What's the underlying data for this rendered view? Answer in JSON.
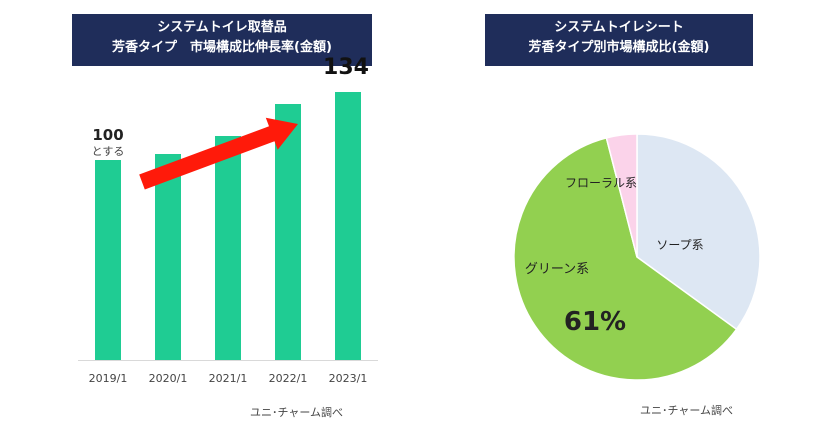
{
  "left_chart": {
    "title_line1": "システムトイレ取替品",
    "title_line2": "芳香タイプ　市場構成比伸長率(金額)",
    "source": "ユニ･チャーム調べ",
    "bar_color": "#1fcc93",
    "arrow_color": "#ff1a0a",
    "start_label": "100",
    "start_sub_label": "とする",
    "end_label": "134"
  },
  "right_chart": {
    "title_line1": "システムトイレシート",
    "title_line2": "芳香タイプ別市場構成比(金額)",
    "source": "ユニ･チャーム調べ",
    "highlight_label": "61%"
  },
  "chart_data": [
    {
      "type": "bar",
      "categories": [
        "2019/1",
        "2020/1",
        "2021/1",
        "2022/1",
        "2023/1"
      ],
      "values": [
        100,
        103,
        112,
        128,
        134
      ],
      "title": "システムトイレ取替品 芳香タイプ　市場構成比伸長率(金額)",
      "ylim": [
        0,
        140
      ]
    },
    {
      "type": "pie",
      "slices": [
        {
          "label": "ソープ系",
          "value": 35,
          "color": "#dde7f3"
        },
        {
          "label": "グリーン系",
          "value": 61,
          "color": "#92d050"
        },
        {
          "label": "フローラル系",
          "value": 4,
          "color": "#fbd3ea"
        }
      ],
      "title": "システムトイレシート 芳香タイプ別市場構成比(金額)"
    }
  ]
}
